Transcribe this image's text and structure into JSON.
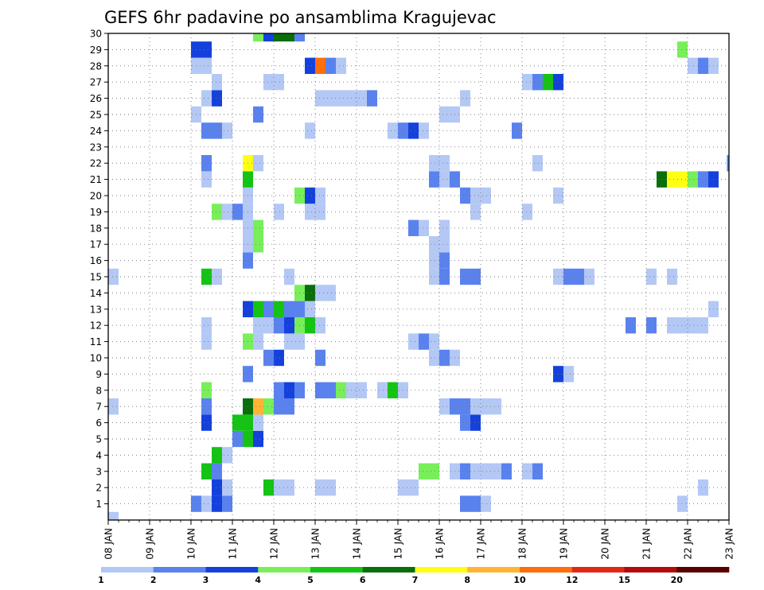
{
  "chart_data": {
    "type": "heatmap",
    "title": "GEFS 6hr padavine po ansamblima Kragujevac",
    "xlabel": "",
    "ylabel": "",
    "x_tick_labels": [
      "08 JAN",
      "09 JAN",
      "10 JAN",
      "11 JAN",
      "12 JAN",
      "13 JAN",
      "14 JAN",
      "15 JAN",
      "16 JAN",
      "17 JAN",
      "18 JAN",
      "19 JAN",
      "20 JAN",
      "21 JAN",
      "22 JAN",
      "23 JAN"
    ],
    "x_range_days": [
      0,
      15
    ],
    "x_step_days": 0.25,
    "y_tick_labels": [
      "1",
      "2",
      "3",
      "4",
      "5",
      "6",
      "7",
      "8",
      "9",
      "10",
      "11",
      "12",
      "13",
      "14",
      "15",
      "16",
      "17",
      "18",
      "19",
      "20",
      "21",
      "22",
      "23",
      "24",
      "25",
      "26",
      "27",
      "28",
      "29",
      "30"
    ],
    "y_range": [
      0,
      30
    ],
    "grid": true,
    "colorbar": {
      "labels": [
        "1",
        "2",
        "3",
        "4",
        "5",
        "6",
        "7",
        "8",
        "10",
        "12",
        "15",
        "20"
      ],
      "bounds": [
        1,
        2,
        3,
        4,
        5,
        6,
        7,
        8,
        10,
        12,
        15,
        20
      ],
      "colors": [
        "#b4c8f5",
        "#5a82ee",
        "#1441dc",
        "#78ef5a",
        "#14c314",
        "#0a6e0a",
        "#ffff14",
        "#ffb432",
        "#ff6e0a",
        "#e12814",
        "#b40a0a",
        "#5a0000"
      ]
    },
    "cells": [
      [
        0,
        0.25,
        0,
        1
      ],
      [
        7,
        0.25,
        0,
        1
      ],
      [
        12,
        0.25,
        12.5,
        2
      ],
      [
        12,
        0.25,
        13,
        2
      ],
      [
        12,
        0.25,
        13.5,
        1
      ],
      [
        12,
        0.25,
        13.75,
        1
      ],
      [
        12,
        0.25,
        14,
        1
      ],
      [
        12,
        0.25,
        14.25,
        1
      ],
      [
        1,
        0.25,
        2,
        2
      ],
      [
        1,
        0.25,
        2.25,
        1
      ],
      [
        1,
        0.25,
        2.5,
        3
      ],
      [
        1,
        0.25,
        2.75,
        2
      ],
      [
        1,
        0.5,
        8.5,
        2
      ],
      [
        1,
        0.25,
        9,
        1
      ],
      [
        1,
        0.25,
        13.75,
        1
      ],
      [
        2,
        0.25,
        2.5,
        3
      ],
      [
        2,
        0.25,
        2.75,
        1
      ],
      [
        2,
        0.25,
        3.75,
        5
      ],
      [
        2,
        0.5,
        4,
        1
      ],
      [
        2,
        0.5,
        5,
        1
      ],
      [
        2,
        0.5,
        7,
        1
      ],
      [
        2,
        0.25,
        14.25,
        1
      ],
      [
        3,
        0.25,
        2.25,
        5
      ],
      [
        3,
        0.25,
        2.5,
        2
      ],
      [
        3,
        0.5,
        7.5,
        4
      ],
      [
        3,
        0.25,
        8.25,
        1
      ],
      [
        3,
        0.25,
        8.5,
        2
      ],
      [
        3,
        0.75,
        8.75,
        1
      ],
      [
        3,
        0.25,
        9.5,
        2
      ],
      [
        3,
        0.25,
        10,
        1
      ],
      [
        3,
        0.25,
        10.25,
        2
      ],
      [
        4,
        0.25,
        2.5,
        5
      ],
      [
        4,
        0.25,
        2.75,
        1
      ],
      [
        5,
        0.25,
        3,
        2
      ],
      [
        5,
        0.25,
        3.25,
        5
      ],
      [
        5,
        0.25,
        3.5,
        3
      ],
      [
        6,
        0.25,
        2.25,
        3
      ],
      [
        6,
        0.5,
        3,
        5
      ],
      [
        6,
        0.25,
        3.5,
        1
      ],
      [
        6,
        0.25,
        8.5,
        2
      ],
      [
        6,
        0.25,
        8.75,
        3
      ],
      [
        7,
        0.25,
        2.25,
        2
      ],
      [
        7,
        0.25,
        3.25,
        6
      ],
      [
        7,
        0.25,
        3.5,
        8
      ],
      [
        7,
        0.25,
        3.75,
        4
      ],
      [
        7,
        0.5,
        4,
        2
      ],
      [
        7,
        0.25,
        8,
        1
      ],
      [
        7,
        0.5,
        8.25,
        2
      ],
      [
        7,
        0.75,
        8.75,
        1
      ],
      [
        8,
        0.25,
        2.25,
        4
      ],
      [
        8,
        0.25,
        4,
        2
      ],
      [
        8,
        0.25,
        4.25,
        3
      ],
      [
        8,
        0.25,
        4.5,
        2
      ],
      [
        8,
        0.5,
        5,
        2
      ],
      [
        8,
        0.25,
        5.5,
        4
      ],
      [
        8,
        0.5,
        5.75,
        1
      ],
      [
        8,
        0.25,
        6.5,
        1
      ],
      [
        8,
        0.25,
        6.75,
        5
      ],
      [
        8,
        0.25,
        7,
        1
      ],
      [
        9,
        0.25,
        3.25,
        2
      ],
      [
        9,
        0.25,
        10.75,
        3
      ],
      [
        9,
        0.25,
        11,
        1
      ],
      [
        10,
        0.25,
        3.75,
        2
      ],
      [
        10,
        0.25,
        4,
        3
      ],
      [
        10,
        0.25,
        5,
        2
      ],
      [
        10,
        0.25,
        7.75,
        1
      ],
      [
        10,
        0.25,
        8,
        2
      ],
      [
        10,
        0.25,
        8.25,
        1
      ],
      [
        11,
        0.25,
        2.25,
        1
      ],
      [
        11,
        0.25,
        3.25,
        4
      ],
      [
        11,
        0.25,
        3.5,
        1
      ],
      [
        11,
        0.5,
        4.25,
        1
      ],
      [
        11,
        0.25,
        7.25,
        1
      ],
      [
        11,
        0.25,
        7.5,
        2
      ],
      [
        11,
        0.25,
        7.75,
        1
      ],
      [
        12,
        0.25,
        2.25,
        1
      ],
      [
        12,
        0.5,
        3.5,
        1
      ],
      [
        12,
        0.25,
        4,
        2
      ],
      [
        12,
        0.25,
        4.25,
        3
      ],
      [
        12,
        0.25,
        4.5,
        4
      ],
      [
        12,
        0.25,
        4.75,
        5
      ],
      [
        12,
        0.25,
        5,
        1
      ],
      [
        13,
        0.25,
        3.25,
        3
      ],
      [
        13,
        0.25,
        3.5,
        5
      ],
      [
        13,
        0.25,
        3.75,
        2
      ],
      [
        13,
        0.25,
        4,
        5
      ],
      [
        13,
        0.5,
        4.25,
        2
      ],
      [
        13,
        0.25,
        4.75,
        1
      ],
      [
        13,
        0.25,
        14.5,
        1
      ],
      [
        14,
        0.25,
        4.5,
        4
      ],
      [
        14,
        0.25,
        4.75,
        6
      ],
      [
        14,
        0.5,
        5,
        1
      ],
      [
        15,
        0.25,
        0,
        1
      ],
      [
        15,
        0.25,
        2.25,
        5
      ],
      [
        15,
        0.25,
        2.5,
        1
      ],
      [
        15,
        0.25,
        4.25,
        1
      ],
      [
        15,
        0.25,
        7.75,
        1
      ],
      [
        15,
        0.25,
        8,
        2
      ],
      [
        15,
        0.5,
        8.5,
        2
      ],
      [
        15,
        0.25,
        10.75,
        1
      ],
      [
        15,
        0.5,
        11,
        2
      ],
      [
        15,
        0.25,
        11.5,
        1
      ],
      [
        15,
        0.25,
        13,
        1
      ],
      [
        15,
        0.25,
        13.5,
        1
      ],
      [
        16,
        0.25,
        3.25,
        2
      ],
      [
        16,
        0.25,
        7.75,
        1
      ],
      [
        16,
        0.25,
        8,
        2
      ],
      [
        17,
        0.25,
        3.25,
        1
      ],
      [
        17,
        0.25,
        3.5,
        4
      ],
      [
        17,
        0.25,
        7.75,
        1
      ],
      [
        17,
        0.25,
        8,
        1
      ],
      [
        18,
        0.25,
        3.25,
        1
      ],
      [
        18,
        0.25,
        3.5,
        4
      ],
      [
        18,
        0.25,
        7.25,
        2
      ],
      [
        18,
        0.25,
        7.5,
        1
      ],
      [
        18,
        0.25,
        8,
        1
      ],
      [
        19,
        0.25,
        2.5,
        4
      ],
      [
        19,
        0.25,
        2.75,
        1
      ],
      [
        19,
        0.25,
        3,
        2
      ],
      [
        19,
        0.25,
        3.25,
        1
      ],
      [
        19,
        0.25,
        4,
        1
      ],
      [
        19,
        0.5,
        4.75,
        1
      ],
      [
        19,
        0.25,
        8.75,
        1
      ],
      [
        19,
        0.25,
        10,
        1
      ],
      [
        20,
        0.25,
        3.25,
        1
      ],
      [
        20,
        0.25,
        4.5,
        4
      ],
      [
        20,
        0.25,
        4.75,
        3
      ],
      [
        20,
        0.25,
        5,
        1
      ],
      [
        20,
        0.25,
        8.5,
        2
      ],
      [
        20,
        0.5,
        8.75,
        1
      ],
      [
        20,
        0.25,
        10.75,
        1
      ],
      [
        21,
        0.25,
        2.25,
        1
      ],
      [
        21,
        0.25,
        3.25,
        5
      ],
      [
        21,
        0.25,
        7.75,
        2
      ],
      [
        21,
        0.25,
        8,
        1
      ],
      [
        21,
        0.25,
        8.25,
        2
      ],
      [
        21,
        0.25,
        13.25,
        6
      ],
      [
        21,
        0.5,
        13.5,
        7
      ],
      [
        21,
        0.25,
        14,
        4
      ],
      [
        21,
        0.25,
        14.25,
        2
      ],
      [
        21,
        0.25,
        14.5,
        3
      ],
      [
        22,
        0.25,
        2.25,
        2
      ],
      [
        22,
        0.25,
        3.25,
        7
      ],
      [
        22,
        0.25,
        3.5,
        1
      ],
      [
        22,
        0.5,
        7.75,
        1
      ],
      [
        22,
        0.25,
        10.25,
        1
      ],
      [
        22,
        0.25,
        14.95,
        2
      ],
      [
        24,
        0.5,
        2.25,
        2
      ],
      [
        24,
        0.25,
        2.75,
        1
      ],
      [
        24,
        0.25,
        4.75,
        1
      ],
      [
        24,
        0.25,
        6.75,
        1
      ],
      [
        24,
        0.25,
        7,
        2
      ],
      [
        24,
        0.25,
        7.25,
        3
      ],
      [
        24,
        0.25,
        7.5,
        1
      ],
      [
        24,
        0.25,
        9.75,
        2
      ],
      [
        25,
        0.25,
        2,
        1
      ],
      [
        25,
        0.25,
        3.5,
        2
      ],
      [
        25,
        0.5,
        8,
        1
      ],
      [
        26,
        0.25,
        2.25,
        1
      ],
      [
        26,
        0.25,
        2.5,
        3
      ],
      [
        26,
        1.25,
        5,
        1
      ],
      [
        26,
        0.25,
        6.25,
        2
      ],
      [
        26,
        0.25,
        8.5,
        1
      ],
      [
        27,
        0.25,
        2.5,
        1
      ],
      [
        27,
        0.5,
        3.75,
        1
      ],
      [
        27,
        0.25,
        10,
        1
      ],
      [
        27,
        0.25,
        10.25,
        2
      ],
      [
        27,
        0.25,
        10.5,
        5
      ],
      [
        27,
        0.25,
        10.75,
        3
      ],
      [
        28,
        0.5,
        2,
        1
      ],
      [
        28,
        0.25,
        4.75,
        3
      ],
      [
        28,
        0.25,
        5,
        9
      ],
      [
        28,
        0.25,
        5.25,
        2
      ],
      [
        28,
        0.25,
        5.5,
        1
      ],
      [
        28,
        0.25,
        14,
        1
      ],
      [
        28,
        0.25,
        14.25,
        2
      ],
      [
        28,
        0.25,
        14.5,
        1
      ],
      [
        29,
        0.5,
        2,
        3
      ],
      [
        29,
        0.25,
        13.75,
        4
      ],
      [
        30,
        0.25,
        3.5,
        4
      ],
      [
        30,
        0.25,
        3.75,
        3
      ],
      [
        30,
        0.5,
        4,
        6
      ],
      [
        30,
        0.25,
        4.5,
        2
      ]
    ]
  }
}
